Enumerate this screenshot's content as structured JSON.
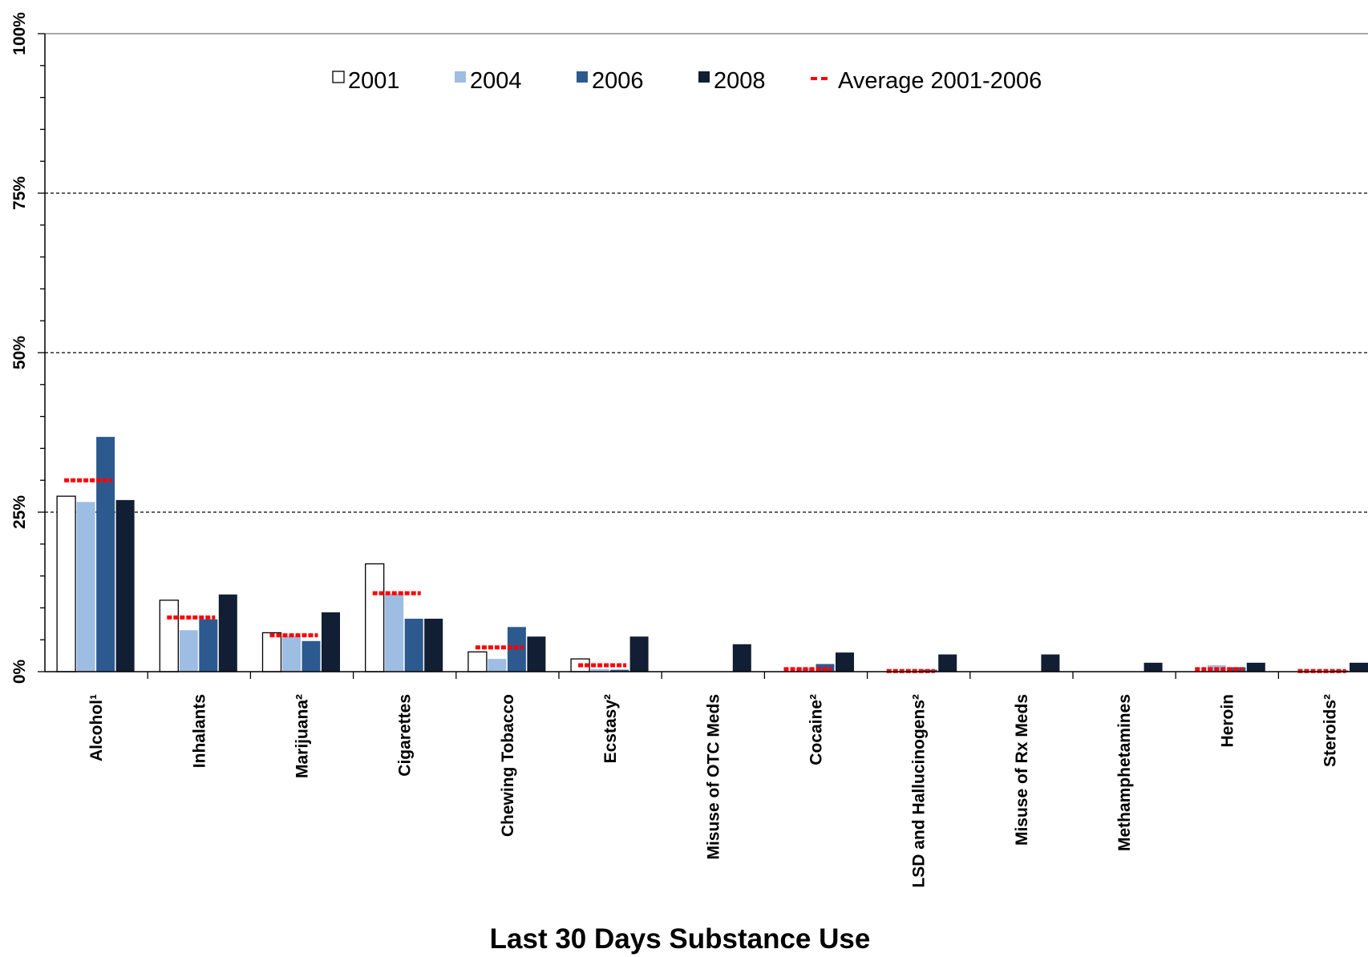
{
  "chart_data": {
    "type": "bar",
    "title": "",
    "xlabel": "Last 30 Days Substance Use",
    "ylabel": "",
    "ylim": [
      0,
      100
    ],
    "yticks": [
      {
        "value": 0,
        "label": "0%"
      },
      {
        "value": 25,
        "label": "25%"
      },
      {
        "value": 50,
        "label": "50%"
      },
      {
        "value": 75,
        "label": "75%"
      },
      {
        "value": 100,
        "label": "100%"
      }
    ],
    "grid": "dashed horizontal at 25, 50, 75",
    "legend_position": "top",
    "categories": [
      "Alcohol¹",
      "Inhalants",
      "Marijuana²",
      "Cigarettes",
      "Chewing Tobacco",
      "Ecstasy²",
      "Misuse of OTC Meds",
      "Cocaine²",
      "LSD and Hallucinogens²",
      "Misuse of Rx Meds",
      "Methamphetamines",
      "Heroin",
      "Steroids²"
    ],
    "series": [
      {
        "name": "2001",
        "color": "#ffffff",
        "stroke": "#000000",
        "values": [
          27.5,
          11.2,
          6.1,
          16.9,
          3.1,
          2.0,
          null,
          null,
          null,
          null,
          null,
          null,
          null
        ]
      },
      {
        "name": "2004",
        "color": "#9dbde3",
        "stroke": "#9dbde3",
        "values": [
          26.6,
          6.5,
          5.6,
          12.2,
          2.0,
          0.4,
          null,
          0.6,
          null,
          null,
          null,
          1.0,
          null
        ]
      },
      {
        "name": "2006",
        "color": "#2c5a8f",
        "stroke": "#2c5a8f",
        "values": [
          36.8,
          8.2,
          4.8,
          8.3,
          7.0,
          0.3,
          null,
          1.2,
          0.3,
          null,
          null,
          0.7,
          0.2
        ]
      },
      {
        "name": "2008",
        "color": "#111e33",
        "stroke": "#111e33",
        "values": [
          26.9,
          12.1,
          9.3,
          8.3,
          5.5,
          5.5,
          4.3,
          3.0,
          2.7,
          2.7,
          1.4,
          1.4,
          1.4
        ]
      }
    ],
    "average": {
      "name": "Average 2001-2006",
      "color": "#ff0000",
      "values": [
        30.0,
        8.5,
        5.7,
        12.3,
        3.8,
        1.0,
        null,
        0.4,
        0.1,
        null,
        null,
        0.4,
        0.1
      ]
    }
  }
}
